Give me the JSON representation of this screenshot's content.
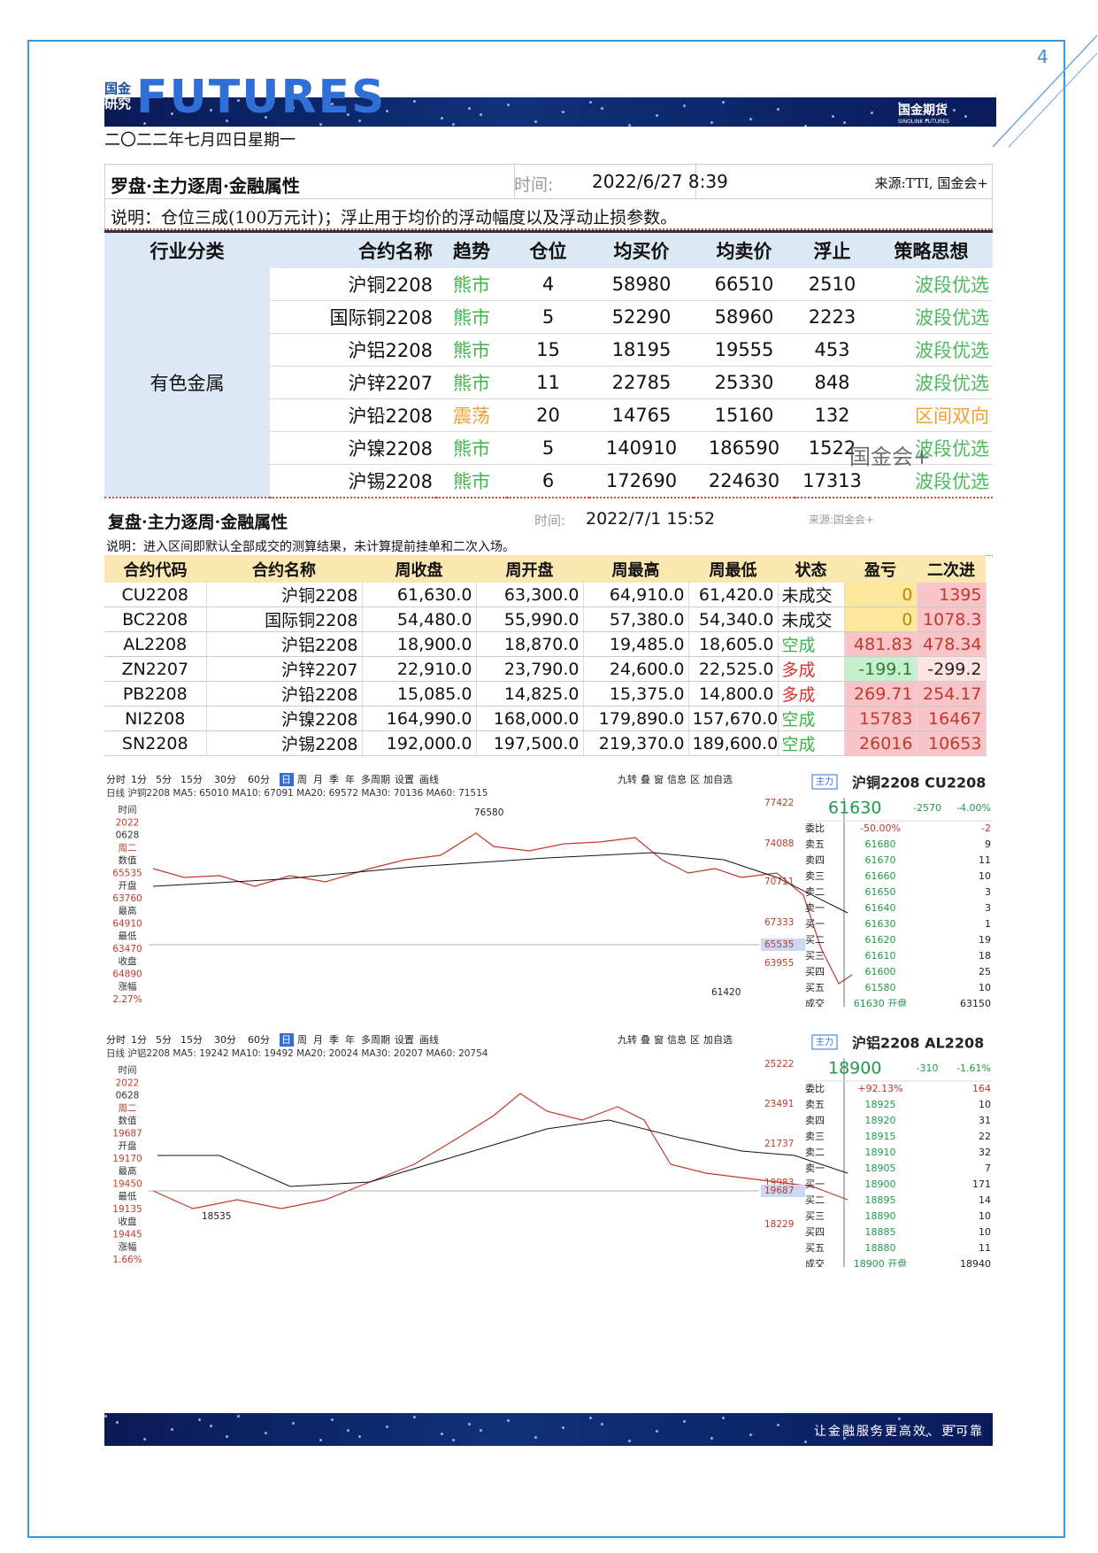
{
  "header": {
    "logo_top": "国金",
    "logo_bottom": "研究",
    "brand": "FUTURES",
    "company": "国金期货",
    "company_en": "SINOLINK FUTURES",
    "date": "二〇二二年七月四日星期一",
    "page_number": "4"
  },
  "compass": {
    "title": "罗盘·主力逐周·金融属性",
    "time_label": "时间:",
    "time": "2022/6/27 8:39",
    "source": "来源:TTI, 国金会+",
    "note": "说明：仓位三成(100万元计)；浮止用于均价的浮动幅度以及浮动止损参数。",
    "headers": [
      "行业分类",
      "合约名称",
      "趋势",
      "仓位",
      "均买价",
      "均卖价",
      "浮止",
      "策略思想"
    ],
    "group": "有色金属",
    "rows": [
      [
        "沪铜2208",
        "熊市",
        "4",
        "58980",
        "66510",
        "2510",
        "波段优选"
      ],
      [
        "国际铜2208",
        "熊市",
        "5",
        "52290",
        "58960",
        "2223",
        "波段优选"
      ],
      [
        "沪铝2208",
        "熊市",
        "15",
        "18195",
        "19555",
        "453",
        "波段优选"
      ],
      [
        "沪锌2207",
        "熊市",
        "11",
        "22785",
        "25330",
        "848",
        "波段优选"
      ],
      [
        "沪铅2208",
        "震荡",
        "20",
        "14765",
        "15160",
        "132",
        "区间双向"
      ],
      [
        "沪镍2208",
        "熊市",
        "5",
        "140910",
        "186590",
        "1522",
        "波段优选"
      ],
      [
        "沪锡2208",
        "熊市",
        "6",
        "172690",
        "224630",
        "17313",
        "波段优选"
      ]
    ]
  },
  "review": {
    "title": "复盘·主力逐周·金融属性",
    "time_label": "时间:",
    "time": "2022/7/1 15:52",
    "source": "来源:国金会+",
    "note": "说明：进入区间即默认全部成交的测算结果，未计算提前挂单和二次入场。",
    "headers": [
      "合约代码",
      "合约名称",
      "周收盘",
      "周开盘",
      "周最高",
      "周最低",
      "状态",
      "盈亏",
      "二次进"
    ],
    "rows": [
      [
        "CU2208",
        "沪铜2208",
        "61,630.0",
        "63,300.0",
        "64,910.0",
        "61,420.0",
        "未成交",
        "0",
        "1395"
      ],
      [
        "BC2208",
        "国际铜2208",
        "54,480.0",
        "55,990.0",
        "57,380.0",
        "54,340.0",
        "未成交",
        "0",
        "1078.3"
      ],
      [
        "AL2208",
        "沪铝2208",
        "18,900.0",
        "18,870.0",
        "19,485.0",
        "18,605.0",
        "空成",
        "481.83",
        "478.34"
      ],
      [
        "ZN2207",
        "沪锌2207",
        "22,910.0",
        "23,790.0",
        "24,600.0",
        "22,525.0",
        "多成",
        "-199.1",
        "-299.2"
      ],
      [
        "PB2208",
        "沪铅2208",
        "15,085.0",
        "14,825.0",
        "15,375.0",
        "14,800.0",
        "多成",
        "269.71",
        "254.17"
      ],
      [
        "NI2208",
        "沪镍2208",
        "164,990.0",
        "168,000.0",
        "179,890.0",
        "157,670.0",
        "空成",
        "15783",
        "16467"
      ],
      [
        "SN2208",
        "沪锡2208",
        "192,000.0",
        "197,500.0",
        "219,370.0",
        "189,600.0",
        "空成",
        "26016",
        "10653"
      ]
    ]
  },
  "charts": [
    {
      "toolbar": [
        "分时",
        "1分",
        "5分",
        "15分",
        "30分",
        "60分",
        "日",
        "周",
        "月",
        "季",
        "年",
        "多周期",
        "设置",
        "画线"
      ],
      "tools": [
        "九转",
        "叠",
        "窗",
        "信息",
        "区",
        "加自选"
      ],
      "ma_line": "日线 沪铜2208 MA5: 65010 MA10: 67091 MA20: 69572 MA30: 70136 MA60: 71515",
      "info": [
        "时间",
        "2022",
        "0628",
        "周二",
        "数值",
        "65535",
        "开盘",
        "63760",
        "最高",
        "64910",
        "最低",
        "63470",
        "收盘",
        "64890",
        "涨幅",
        "2.27%"
      ],
      "axis_labels": [
        "77422",
        "74088",
        "70711",
        "67333",
        "65535",
        "63955"
      ],
      "annotations": [
        "76580",
        "61420"
      ],
      "quote": {
        "tag": "主力",
        "title": "沪铜2208 CU2208",
        "price": "61630",
        "change": "-2570",
        "pct": "-4.00%",
        "rows": [
          [
            "委比",
            "-50.00%",
            "-2"
          ],
          [
            "卖五",
            "61680",
            "9"
          ],
          [
            "卖四",
            "61670",
            "11"
          ],
          [
            "卖三",
            "61660",
            "10"
          ],
          [
            "卖二",
            "61650",
            "3"
          ],
          [
            "卖一",
            "61640",
            "3"
          ],
          [
            "买一",
            "61630",
            "1"
          ],
          [
            "买二",
            "61620",
            "19"
          ],
          [
            "买三",
            "61610",
            "18"
          ],
          [
            "买四",
            "61600",
            "25"
          ],
          [
            "买五",
            "61580",
            "10"
          ],
          [
            "成交",
            "61630 开盘",
            "63150"
          ]
        ]
      }
    },
    {
      "toolbar": [
        "分时",
        "1分",
        "5分",
        "15分",
        "30分",
        "60分",
        "日",
        "周",
        "月",
        "季",
        "年",
        "多周期",
        "设置",
        "画线"
      ],
      "tools": [
        "九转",
        "叠",
        "窗",
        "信息",
        "区",
        "加自选"
      ],
      "ma_line": "日线 沪铝2208 MA5: 19242 MA10: 19492 MA20: 20024 MA30: 20207 MA60: 20754",
      "info": [
        "时间",
        "2022",
        "0628",
        "周二",
        "数值",
        "19687",
        "开盘",
        "19170",
        "最高",
        "19450",
        "最低",
        "19135",
        "收盘",
        "19445",
        "涨幅",
        "1.66%"
      ],
      "axis_labels": [
        "25222",
        "23491",
        "21737",
        "19983",
        "19687",
        "18229"
      ],
      "annotations": [
        "18535"
      ],
      "quote": {
        "tag": "主力",
        "title": "沪铝2208 AL2208",
        "price": "18900",
        "change": "-310",
        "pct": "-1.61%",
        "rows": [
          [
            "委比",
            "+92.13%",
            "164"
          ],
          [
            "卖五",
            "18925",
            "10"
          ],
          [
            "卖四",
            "18920",
            "31"
          ],
          [
            "卖三",
            "18915",
            "22"
          ],
          [
            "卖二",
            "18910",
            "32"
          ],
          [
            "卖一",
            "18905",
            "7"
          ],
          [
            "买一",
            "18900",
            "171"
          ],
          [
            "买二",
            "18895",
            "14"
          ],
          [
            "买三",
            "18890",
            "10"
          ],
          [
            "买四",
            "18885",
            "10"
          ],
          [
            "买五",
            "18880",
            "11"
          ],
          [
            "成交",
            "18900 开盘",
            "18940"
          ]
        ]
      }
    }
  ],
  "watermark": "国金会+",
  "footer": {
    "slogan": "让金融服务更高效、更可靠"
  }
}
